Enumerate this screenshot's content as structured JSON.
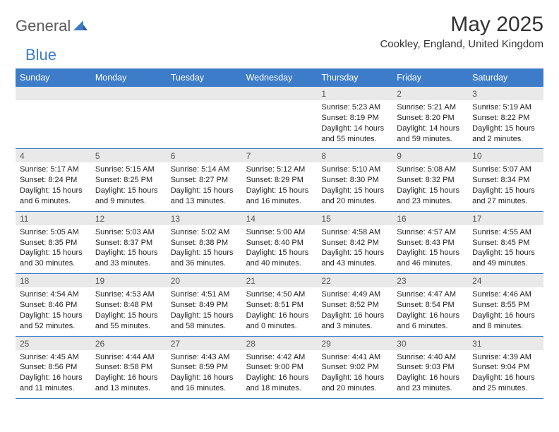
{
  "header": {
    "logo_general": "General",
    "logo_blue": "Blue",
    "title": "May 2025",
    "location": "Cookley, England, United Kingdom"
  },
  "weekday_header": {
    "bg_color": "#3d7cc9",
    "text_color": "#ffffff",
    "days": [
      "Sunday",
      "Monday",
      "Tuesday",
      "Wednesday",
      "Thursday",
      "Friday",
      "Saturday"
    ]
  },
  "daynum_row": {
    "bg_color": "#e9e9e9"
  },
  "week_border_color": "#3d7cc9",
  "weeks": [
    [
      {
        "day": "",
        "sunrise": "",
        "sunset": "",
        "daylight": ""
      },
      {
        "day": "",
        "sunrise": "",
        "sunset": "",
        "daylight": ""
      },
      {
        "day": "",
        "sunrise": "",
        "sunset": "",
        "daylight": ""
      },
      {
        "day": "",
        "sunrise": "",
        "sunset": "",
        "daylight": ""
      },
      {
        "day": "1",
        "sunrise": "Sunrise: 5:23 AM",
        "sunset": "Sunset: 8:19 PM",
        "daylight": "Daylight: 14 hours and 55 minutes."
      },
      {
        "day": "2",
        "sunrise": "Sunrise: 5:21 AM",
        "sunset": "Sunset: 8:20 PM",
        "daylight": "Daylight: 14 hours and 59 minutes."
      },
      {
        "day": "3",
        "sunrise": "Sunrise: 5:19 AM",
        "sunset": "Sunset: 8:22 PM",
        "daylight": "Daylight: 15 hours and 2 minutes."
      }
    ],
    [
      {
        "day": "4",
        "sunrise": "Sunrise: 5:17 AM",
        "sunset": "Sunset: 8:24 PM",
        "daylight": "Daylight: 15 hours and 6 minutes."
      },
      {
        "day": "5",
        "sunrise": "Sunrise: 5:15 AM",
        "sunset": "Sunset: 8:25 PM",
        "daylight": "Daylight: 15 hours and 9 minutes."
      },
      {
        "day": "6",
        "sunrise": "Sunrise: 5:14 AM",
        "sunset": "Sunset: 8:27 PM",
        "daylight": "Daylight: 15 hours and 13 minutes."
      },
      {
        "day": "7",
        "sunrise": "Sunrise: 5:12 AM",
        "sunset": "Sunset: 8:29 PM",
        "daylight": "Daylight: 15 hours and 16 minutes."
      },
      {
        "day": "8",
        "sunrise": "Sunrise: 5:10 AM",
        "sunset": "Sunset: 8:30 PM",
        "daylight": "Daylight: 15 hours and 20 minutes."
      },
      {
        "day": "9",
        "sunrise": "Sunrise: 5:08 AM",
        "sunset": "Sunset: 8:32 PM",
        "daylight": "Daylight: 15 hours and 23 minutes."
      },
      {
        "day": "10",
        "sunrise": "Sunrise: 5:07 AM",
        "sunset": "Sunset: 8:34 PM",
        "daylight": "Daylight: 15 hours and 27 minutes."
      }
    ],
    [
      {
        "day": "11",
        "sunrise": "Sunrise: 5:05 AM",
        "sunset": "Sunset: 8:35 PM",
        "daylight": "Daylight: 15 hours and 30 minutes."
      },
      {
        "day": "12",
        "sunrise": "Sunrise: 5:03 AM",
        "sunset": "Sunset: 8:37 PM",
        "daylight": "Daylight: 15 hours and 33 minutes."
      },
      {
        "day": "13",
        "sunrise": "Sunrise: 5:02 AM",
        "sunset": "Sunset: 8:38 PM",
        "daylight": "Daylight: 15 hours and 36 minutes."
      },
      {
        "day": "14",
        "sunrise": "Sunrise: 5:00 AM",
        "sunset": "Sunset: 8:40 PM",
        "daylight": "Daylight: 15 hours and 40 minutes."
      },
      {
        "day": "15",
        "sunrise": "Sunrise: 4:58 AM",
        "sunset": "Sunset: 8:42 PM",
        "daylight": "Daylight: 15 hours and 43 minutes."
      },
      {
        "day": "16",
        "sunrise": "Sunrise: 4:57 AM",
        "sunset": "Sunset: 8:43 PM",
        "daylight": "Daylight: 15 hours and 46 minutes."
      },
      {
        "day": "17",
        "sunrise": "Sunrise: 4:55 AM",
        "sunset": "Sunset: 8:45 PM",
        "daylight": "Daylight: 15 hours and 49 minutes."
      }
    ],
    [
      {
        "day": "18",
        "sunrise": "Sunrise: 4:54 AM",
        "sunset": "Sunset: 8:46 PM",
        "daylight": "Daylight: 15 hours and 52 minutes."
      },
      {
        "day": "19",
        "sunrise": "Sunrise: 4:53 AM",
        "sunset": "Sunset: 8:48 PM",
        "daylight": "Daylight: 15 hours and 55 minutes."
      },
      {
        "day": "20",
        "sunrise": "Sunrise: 4:51 AM",
        "sunset": "Sunset: 8:49 PM",
        "daylight": "Daylight: 15 hours and 58 minutes."
      },
      {
        "day": "21",
        "sunrise": "Sunrise: 4:50 AM",
        "sunset": "Sunset: 8:51 PM",
        "daylight": "Daylight: 16 hours and 0 minutes."
      },
      {
        "day": "22",
        "sunrise": "Sunrise: 4:49 AM",
        "sunset": "Sunset: 8:52 PM",
        "daylight": "Daylight: 16 hours and 3 minutes."
      },
      {
        "day": "23",
        "sunrise": "Sunrise: 4:47 AM",
        "sunset": "Sunset: 8:54 PM",
        "daylight": "Daylight: 16 hours and 6 minutes."
      },
      {
        "day": "24",
        "sunrise": "Sunrise: 4:46 AM",
        "sunset": "Sunset: 8:55 PM",
        "daylight": "Daylight: 16 hours and 8 minutes."
      }
    ],
    [
      {
        "day": "25",
        "sunrise": "Sunrise: 4:45 AM",
        "sunset": "Sunset: 8:56 PM",
        "daylight": "Daylight: 16 hours and 11 minutes."
      },
      {
        "day": "26",
        "sunrise": "Sunrise: 4:44 AM",
        "sunset": "Sunset: 8:58 PM",
        "daylight": "Daylight: 16 hours and 13 minutes."
      },
      {
        "day": "27",
        "sunrise": "Sunrise: 4:43 AM",
        "sunset": "Sunset: 8:59 PM",
        "daylight": "Daylight: 16 hours and 16 minutes."
      },
      {
        "day": "28",
        "sunrise": "Sunrise: 4:42 AM",
        "sunset": "Sunset: 9:00 PM",
        "daylight": "Daylight: 16 hours and 18 minutes."
      },
      {
        "day": "29",
        "sunrise": "Sunrise: 4:41 AM",
        "sunset": "Sunset: 9:02 PM",
        "daylight": "Daylight: 16 hours and 20 minutes."
      },
      {
        "day": "30",
        "sunrise": "Sunrise: 4:40 AM",
        "sunset": "Sunset: 9:03 PM",
        "daylight": "Daylight: 16 hours and 23 minutes."
      },
      {
        "day": "31",
        "sunrise": "Sunrise: 4:39 AM",
        "sunset": "Sunset: 9:04 PM",
        "daylight": "Daylight: 16 hours and 25 minutes."
      }
    ]
  ]
}
